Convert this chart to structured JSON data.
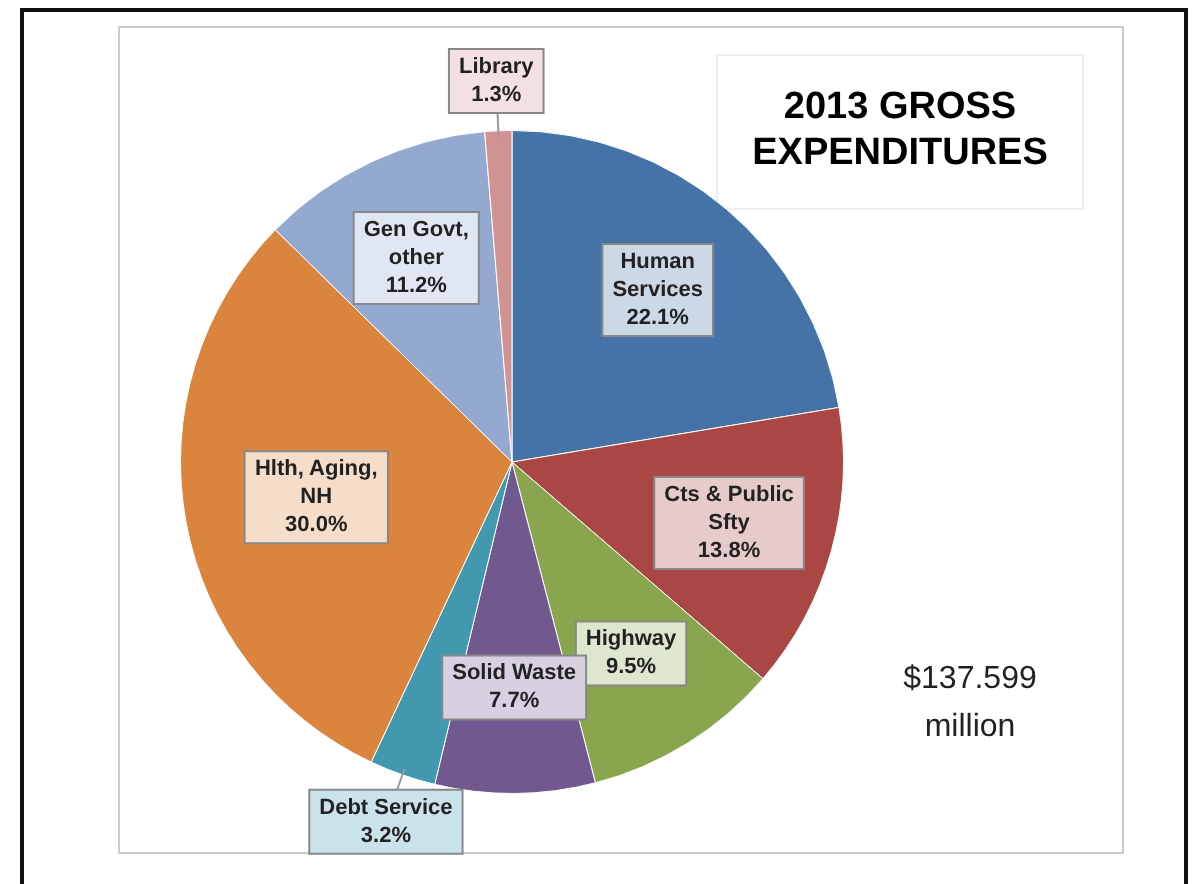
{
  "chart_data": {
    "type": "pie",
    "title": "2013 GROSS EXPENDITURES",
    "categories": [
      "Human Services",
      "Cts & Public Sfty",
      "Highway",
      "Solid Waste",
      "Debt Service",
      "Hlth, Aging, NH",
      "Gen Govt, other",
      "Library"
    ],
    "values": [
      22.1,
      13.8,
      9.5,
      7.7,
      3.2,
      30.0,
      11.2,
      1.3
    ],
    "value_labels": [
      "22.1%",
      "13.8%",
      "9.5%",
      "7.7%",
      "3.2%",
      "30.0%",
      "11.2%",
      "1.3%"
    ],
    "colors": [
      "#4572a7",
      "#aa4643",
      "#89a54e",
      "#71588f",
      "#4198af",
      "#db843d",
      "#93a9cf",
      "#d19392"
    ],
    "annotations": [
      "$137.599 million"
    ],
    "legend": false
  }
}
